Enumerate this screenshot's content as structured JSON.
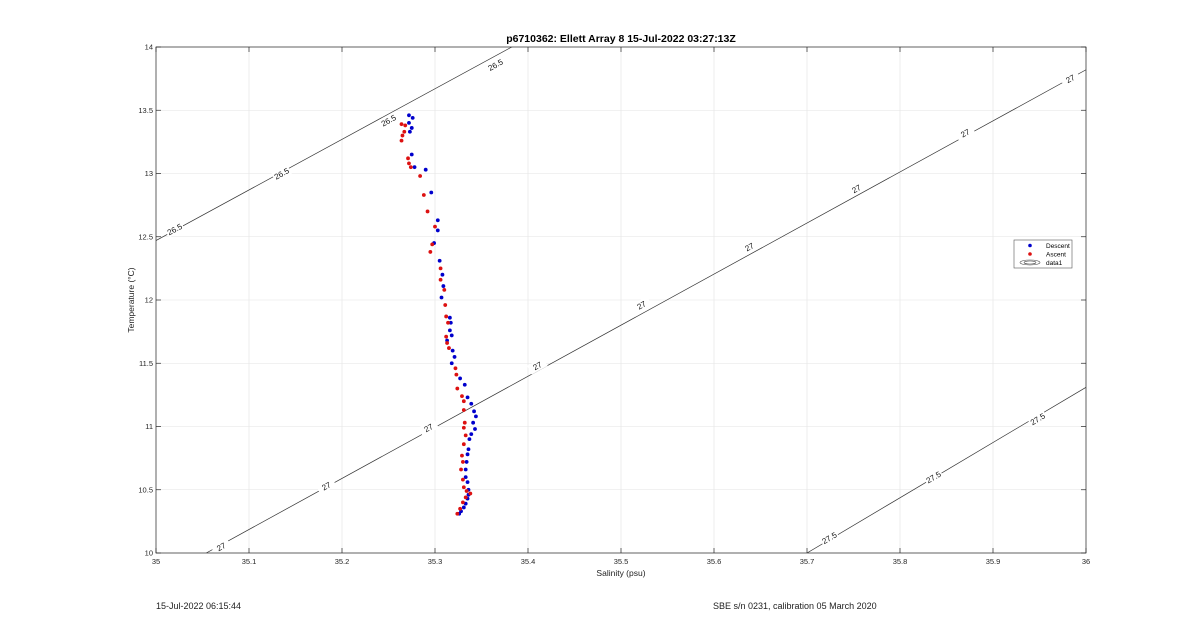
{
  "chart_data": {
    "type": "scatter",
    "title": "p6710362: Ellett Array 8 15-Jul-2022 03:27:13Z",
    "xlabel": "Salinity (psu)",
    "ylabel": "Temperature (°C)",
    "xlim": [
      35,
      36
    ],
    "ylim": [
      10,
      14
    ],
    "xticks": [
      35,
      35.1,
      35.2,
      35.3,
      35.4,
      35.5,
      35.6,
      35.7,
      35.8,
      35.9,
      36
    ],
    "xtick_labels": [
      "35",
      "35.1",
      "35.2",
      "35.3",
      "35.4",
      "35.5",
      "35.6",
      "35.7",
      "35.8",
      "35.9",
      "36"
    ],
    "yticks": [
      10,
      10.5,
      11,
      11.5,
      12,
      12.5,
      13,
      13.5,
      14
    ],
    "ytick_labels": [
      "10",
      "10.5",
      "11",
      "11.5",
      "12",
      "12.5",
      "13",
      "13.5",
      "14"
    ],
    "grid": true,
    "legend_position": "right",
    "legend": [
      "Descent",
      "Ascent",
      "data1"
    ],
    "series": [
      {
        "name": "Descent",
        "color": "#0000cc",
        "points": [
          [
            35.272,
            13.46
          ],
          [
            35.276,
            13.44
          ],
          [
            35.272,
            13.4
          ],
          [
            35.275,
            13.36
          ],
          [
            35.273,
            13.33
          ],
          [
            35.275,
            13.15
          ],
          [
            35.278,
            13.05
          ],
          [
            35.29,
            13.03
          ],
          [
            35.296,
            12.85
          ],
          [
            35.303,
            12.63
          ],
          [
            35.303,
            12.55
          ],
          [
            35.299,
            12.45
          ],
          [
            35.305,
            12.31
          ],
          [
            35.308,
            12.2
          ],
          [
            35.309,
            12.11
          ],
          [
            35.307,
            12.02
          ],
          [
            35.316,
            11.86
          ],
          [
            35.317,
            11.82
          ],
          [
            35.316,
            11.76
          ],
          [
            35.318,
            11.72
          ],
          [
            35.313,
            11.68
          ],
          [
            35.319,
            11.6
          ],
          [
            35.321,
            11.55
          ],
          [
            35.318,
            11.5
          ],
          [
            35.327,
            11.38
          ],
          [
            35.332,
            11.33
          ],
          [
            35.335,
            11.23
          ],
          [
            35.339,
            11.18
          ],
          [
            35.342,
            11.12
          ],
          [
            35.344,
            11.08
          ],
          [
            35.341,
            11.03
          ],
          [
            35.343,
            10.98
          ],
          [
            35.339,
            10.94
          ],
          [
            35.337,
            10.9
          ],
          [
            35.336,
            10.82
          ],
          [
            35.335,
            10.78
          ],
          [
            35.334,
            10.72
          ],
          [
            35.333,
            10.66
          ],
          [
            35.333,
            10.6
          ],
          [
            35.335,
            10.56
          ],
          [
            35.336,
            10.5
          ],
          [
            35.336,
            10.46
          ],
          [
            35.335,
            10.43
          ],
          [
            35.333,
            10.39
          ],
          [
            35.331,
            10.36
          ],
          [
            35.328,
            10.33
          ],
          [
            35.326,
            10.31
          ]
        ]
      },
      {
        "name": "Ascent",
        "color": "#dd1111",
        "points": [
          [
            35.264,
            13.39
          ],
          [
            35.268,
            13.38
          ],
          [
            35.267,
            13.33
          ],
          [
            35.265,
            13.3
          ],
          [
            35.264,
            13.26
          ],
          [
            35.271,
            13.12
          ],
          [
            35.272,
            13.08
          ],
          [
            35.274,
            13.05
          ],
          [
            35.284,
            12.98
          ],
          [
            35.288,
            12.83
          ],
          [
            35.292,
            12.7
          ],
          [
            35.3,
            12.58
          ],
          [
            35.297,
            12.44
          ],
          [
            35.295,
            12.38
          ],
          [
            35.306,
            12.25
          ],
          [
            35.306,
            12.16
          ],
          [
            35.31,
            12.08
          ],
          [
            35.311,
            11.96
          ],
          [
            35.312,
            11.87
          ],
          [
            35.314,
            11.82
          ],
          [
            35.312,
            11.71
          ],
          [
            35.313,
            11.66
          ],
          [
            35.315,
            11.62
          ],
          [
            35.322,
            11.46
          ],
          [
            35.323,
            11.41
          ],
          [
            35.324,
            11.3
          ],
          [
            35.329,
            11.24
          ],
          [
            35.331,
            11.2
          ],
          [
            35.331,
            11.13
          ],
          [
            35.332,
            11.03
          ],
          [
            35.331,
            10.99
          ],
          [
            35.333,
            10.93
          ],
          [
            35.331,
            10.86
          ],
          [
            35.329,
            10.77
          ],
          [
            35.33,
            10.72
          ],
          [
            35.328,
            10.66
          ],
          [
            35.33,
            10.58
          ],
          [
            35.331,
            10.52
          ],
          [
            35.334,
            10.49
          ],
          [
            35.338,
            10.47
          ],
          [
            35.333,
            10.44
          ],
          [
            35.33,
            10.4
          ],
          [
            35.327,
            10.35
          ],
          [
            35.324,
            10.31
          ]
        ]
      }
    ],
    "contours": [
      {
        "level": "26.5",
        "points": [
          [
            35,
            12.47
          ],
          [
            35.4,
            14.07
          ]
        ],
        "labels": [
          [
            35.02,
            12.56
          ],
          [
            35.135,
            13.0
          ],
          [
            35.25,
            13.42
          ],
          [
            35.365,
            13.86
          ]
        ]
      },
      {
        "level": "27",
        "points": [
          [
            35.054,
            10.0
          ],
          [
            36,
            13.82
          ]
        ],
        "labels": [
          [
            35.07,
            10.05
          ],
          [
            35.183,
            10.53
          ],
          [
            35.293,
            10.99
          ],
          [
            35.41,
            11.48
          ],
          [
            35.522,
            11.96
          ],
          [
            35.638,
            12.42
          ],
          [
            35.753,
            12.88
          ],
          [
            35.87,
            13.32
          ],
          [
            35.983,
            13.75
          ]
        ]
      },
      {
        "level": "27.5",
        "points": [
          [
            35.7,
            10.0
          ],
          [
            36,
            11.31
          ]
        ],
        "labels": [
          [
            35.724,
            10.12
          ],
          [
            35.836,
            10.6
          ],
          [
            35.948,
            11.06
          ]
        ]
      }
    ]
  },
  "footer": {
    "date": "15-Jul-2022 06:15:44",
    "calibration": "SBE s/n 0231, calibration 05 March 2020"
  }
}
